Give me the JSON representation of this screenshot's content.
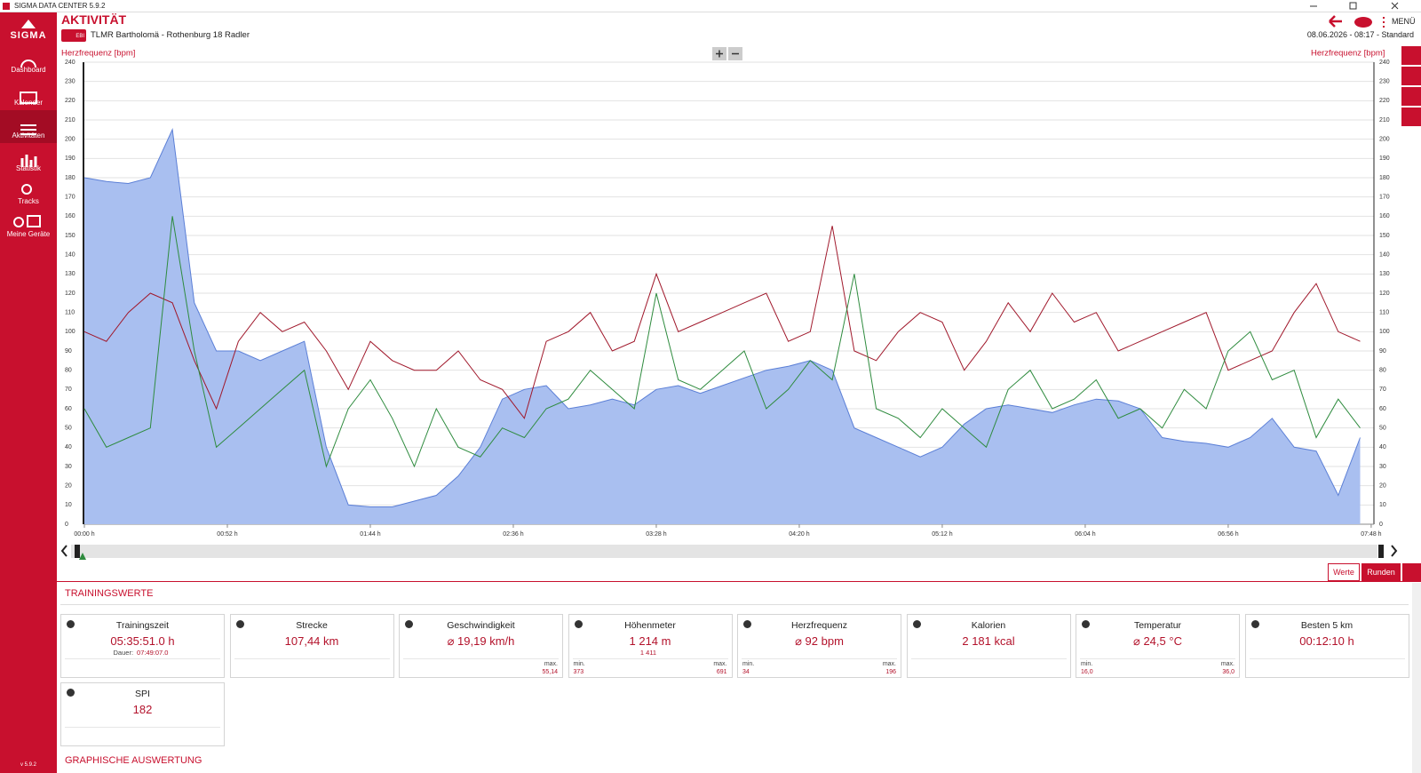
{
  "window": {
    "title": "SIGMA DATA CENTER 5.9.2"
  },
  "sidebar": {
    "logo": "SIGMA",
    "items": [
      "Dashboard",
      "Kalender",
      "Aktivitäten",
      "Statistik",
      "Tracks",
      "Meine Geräte"
    ],
    "version": "v 5.9.2"
  },
  "header": {
    "title": "AKTIVITÄT",
    "badge": "EBI",
    "activity": "TLMR Bartholomä - Rothenburg 18 Radler",
    "menu": "MENÜ",
    "meta": "08.06.2026 - 08:17 - Standard"
  },
  "chart_data": {
    "type": "line",
    "ylabel": "Herzfrequenz [bpm]",
    "x": [
      0,
      8,
      16,
      24,
      32,
      40,
      48,
      56,
      64,
      72,
      80,
      88,
      96,
      104,
      112,
      120,
      128,
      136,
      144,
      152,
      160,
      168,
      176,
      184,
      192,
      200,
      208,
      216,
      224,
      232,
      240,
      248,
      256,
      264,
      272,
      280,
      288,
      296,
      304,
      312,
      320,
      328,
      336,
      344,
      352,
      360,
      368,
      376,
      384,
      392,
      400,
      408,
      416,
      424,
      432,
      440,
      448,
      456,
      464
    ],
    "series": [
      {
        "color": "#5b7fd6",
        "fill": true,
        "values": [
          180,
          178,
          177,
          180,
          205,
          115,
          90,
          90,
          85,
          90,
          95,
          40,
          10,
          9,
          9,
          12,
          15,
          25,
          40,
          65,
          70,
          72,
          60,
          62,
          65,
          62,
          70,
          72,
          68,
          72,
          76,
          80,
          82,
          85,
          80,
          50,
          45,
          40,
          35,
          40,
          52,
          60,
          62,
          60,
          58,
          62,
          65,
          64,
          60,
          45,
          43,
          42,
          40,
          45,
          55,
          40,
          38,
          15,
          45
        ]
      },
      {
        "color": "#a0182b",
        "fill": false,
        "values": [
          100,
          95,
          110,
          120,
          115,
          85,
          60,
          95,
          110,
          100,
          105,
          90,
          70,
          95,
          85,
          80,
          80,
          90,
          75,
          70,
          55,
          95,
          100,
          110,
          90,
          95,
          130,
          100,
          105,
          110,
          115,
          120,
          95,
          100,
          155,
          90,
          85,
          100,
          110,
          105,
          80,
          95,
          115,
          100,
          120,
          105,
          110,
          90,
          95,
          100,
          105,
          110,
          80,
          85,
          90,
          110,
          125,
          100,
          95
        ]
      },
      {
        "color": "#2e8b3e",
        "fill": false,
        "values": [
          60,
          40,
          45,
          50,
          160,
          90,
          40,
          50,
          60,
          70,
          80,
          30,
          60,
          75,
          55,
          30,
          60,
          40,
          35,
          50,
          45,
          60,
          65,
          80,
          70,
          60,
          120,
          75,
          70,
          80,
          90,
          60,
          70,
          85,
          75,
          130,
          60,
          55,
          45,
          60,
          50,
          40,
          70,
          80,
          60,
          65,
          75,
          55,
          60,
          50,
          70,
          60,
          90,
          100,
          75,
          80,
          45,
          65,
          50
        ]
      }
    ],
    "xlim": [
      0,
      469
    ],
    "xticks": [
      {
        "value": 0,
        "label": "00:00 h"
      },
      {
        "value": 52,
        "label": "00:52 h"
      },
      {
        "value": 104,
        "label": "01:44 h"
      },
      {
        "value": 156,
        "label": "02:36 h"
      },
      {
        "value": 208,
        "label": "03:28 h"
      },
      {
        "value": 260,
        "label": "04:20 h"
      },
      {
        "value": 312,
        "label": "05:12 h"
      },
      {
        "value": 364,
        "label": "06:04 h"
      },
      {
        "value": 416,
        "label": "06:56 h"
      },
      {
        "value": 468,
        "label": "07:48 h"
      }
    ],
    "ylim": [
      0,
      240
    ],
    "yticks": [
      0,
      10,
      20,
      30,
      40,
      50,
      60,
      70,
      80,
      90,
      100,
      110,
      120,
      130,
      140,
      150,
      160,
      170,
      180,
      190,
      200,
      210,
      220,
      230,
      240
    ],
    "grid": true
  },
  "tabs": [
    "Werte",
    "Runden"
  ],
  "sections": {
    "training": "TRAININGSWERTE",
    "graphic": "GRAPHISCHE AUSWERTUNG"
  },
  "cards": [
    {
      "title": "Trainingszeit",
      "value": "05:35:51.0 h",
      "sub_label": "Dauer:",
      "sub_value": "07:49:07.0"
    },
    {
      "title": "Strecke",
      "value": "107,44 km"
    },
    {
      "title": "Geschwindigkeit",
      "value": "⌀ 19,19 km/h",
      "max_label": "max.",
      "max": "55,14"
    },
    {
      "title": "Höhenmeter",
      "value": "1 214 m",
      "sub_value": "1 411",
      "min_label": "min.",
      "min": "373",
      "max_label": "max.",
      "max": "691"
    },
    {
      "title": "Herzfrequenz",
      "value": "⌀ 92 bpm",
      "min_label": "min.",
      "min": "34",
      "max_label": "max.",
      "max": "196"
    },
    {
      "title": "Kalorien",
      "value": "2 181 kcal"
    },
    {
      "title": "Temperatur",
      "value": "⌀ 24,5 °C",
      "min_label": "min.",
      "min": "16,0",
      "max_label": "max.",
      "max": "36,0"
    },
    {
      "title": "Besten 5 km",
      "value": "00:12:10 h"
    },
    {
      "title": "SPI",
      "value": "182"
    }
  ]
}
